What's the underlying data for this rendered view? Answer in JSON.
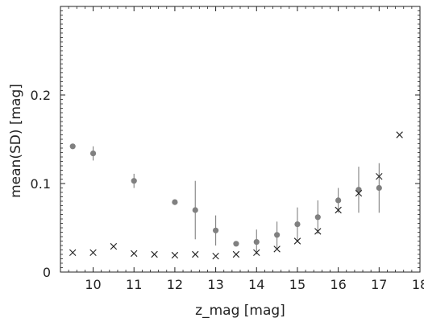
{
  "chart_data": {
    "type": "scatter",
    "xlabel": "z_mag [mag]",
    "ylabel": "mean(SD) [mag]",
    "xlim": [
      9.2,
      18.0
    ],
    "ylim": [
      0,
      0.3
    ],
    "x_ticks": [
      10,
      11,
      12,
      13,
      14,
      15,
      16,
      17,
      18
    ],
    "x_tick_labels": [
      "10",
      "11",
      "12",
      "13",
      "14",
      "15",
      "16",
      "17",
      "18"
    ],
    "y_ticks": [
      0,
      0.1,
      0.2
    ],
    "y_tick_labels": [
      "0",
      "0.1",
      "0.2"
    ],
    "grid": false,
    "series": [
      {
        "marker": "filled-circle",
        "color": "#808080",
        "points": [
          {
            "x": 9.5,
            "y": 0.142,
            "err": 0.003
          },
          {
            "x": 10.0,
            "y": 0.134,
            "err": 0.008
          },
          {
            "x": 11.0,
            "y": 0.103,
            "err": 0.008
          },
          {
            "x": 12.0,
            "y": 0.079,
            "err": 0.003
          },
          {
            "x": 12.5,
            "y": 0.07,
            "err": 0.033
          },
          {
            "x": 13.0,
            "y": 0.047,
            "err": 0.017
          },
          {
            "x": 13.5,
            "y": 0.032,
            "err": 0.003
          },
          {
            "x": 14.0,
            "y": 0.034,
            "err": 0.014
          },
          {
            "x": 14.5,
            "y": 0.042,
            "err": 0.015
          },
          {
            "x": 15.0,
            "y": 0.054,
            "err": 0.019
          },
          {
            "x": 15.5,
            "y": 0.062,
            "err": 0.019
          },
          {
            "x": 16.0,
            "y": 0.081,
            "err": 0.014
          },
          {
            "x": 16.5,
            "y": 0.093,
            "err": 0.026
          },
          {
            "x": 17.0,
            "y": 0.095,
            "err": 0.028
          }
        ]
      },
      {
        "marker": "x",
        "color": "#222222",
        "points": [
          {
            "x": 9.5,
            "y": 0.022
          },
          {
            "x": 10.0,
            "y": 0.022
          },
          {
            "x": 10.5,
            "y": 0.029
          },
          {
            "x": 11.0,
            "y": 0.021
          },
          {
            "x": 11.5,
            "y": 0.02
          },
          {
            "x": 12.0,
            "y": 0.019
          },
          {
            "x": 12.5,
            "y": 0.02
          },
          {
            "x": 13.0,
            "y": 0.018
          },
          {
            "x": 13.5,
            "y": 0.02
          },
          {
            "x": 14.0,
            "y": 0.022
          },
          {
            "x": 14.5,
            "y": 0.026
          },
          {
            "x": 15.0,
            "y": 0.035
          },
          {
            "x": 15.5,
            "y": 0.046
          },
          {
            "x": 16.0,
            "y": 0.07
          },
          {
            "x": 16.5,
            "y": 0.089
          },
          {
            "x": 17.0,
            "y": 0.108
          },
          {
            "x": 17.5,
            "y": 0.155
          }
        ]
      }
    ]
  }
}
